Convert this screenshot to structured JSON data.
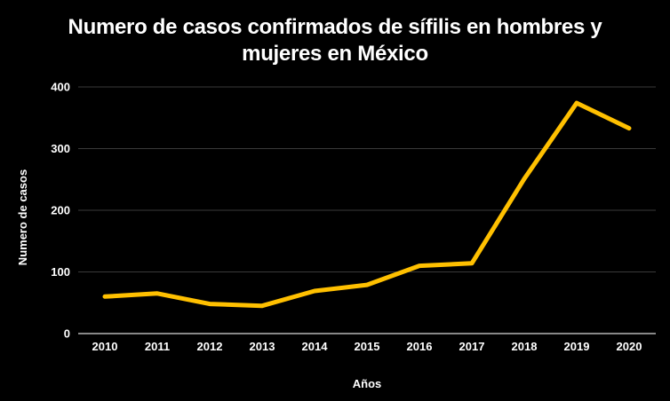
{
  "chart_data": {
    "type": "line",
    "title": "Numero de casos confirmados de sífilis en hombres y mujeres en México",
    "xlabel": "Años",
    "ylabel": "Numero de casos",
    "categories": [
      "2010",
      "2011",
      "2012",
      "2013",
      "2014",
      "2015",
      "2016",
      "2017",
      "2018",
      "2019",
      "2020"
    ],
    "series": [
      {
        "values": [
          60,
          65,
          48,
          45,
          69,
          79,
          110,
          114,
          251,
          374,
          333
        ]
      }
    ],
    "ylim": [
      0,
      400
    ],
    "yticks": [
      0,
      100,
      200,
      300,
      400
    ],
    "grid": true,
    "legend": "none",
    "colors": {
      "background": "#000000",
      "line": "#FFC000",
      "grid": "#3a3a3a",
      "text": "#ffffff"
    }
  }
}
